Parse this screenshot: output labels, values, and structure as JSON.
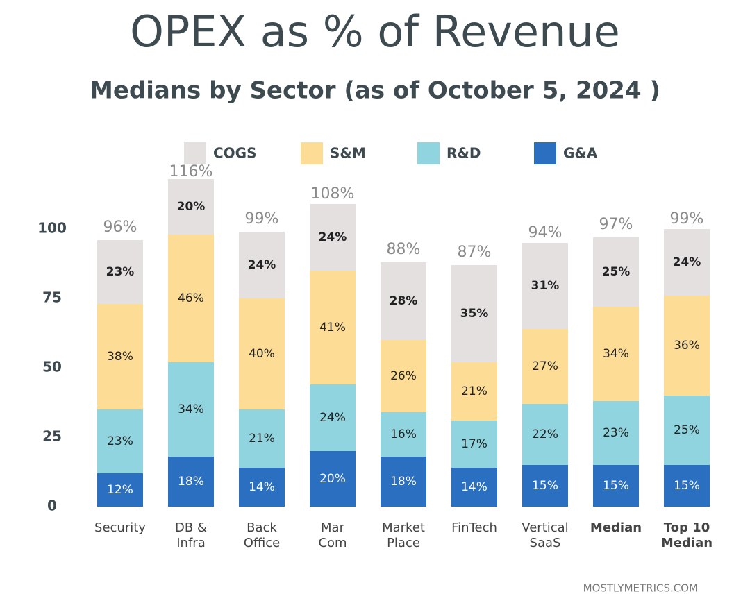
{
  "chart_data": {
    "type": "stacked_bar",
    "title": "OPEX as % of Revenue",
    "subtitle": "Medians by Sector (as of October 5, 2024 )",
    "source": "MOSTLYMETRICS.COM",
    "categories": [
      [
        "Security"
      ],
      [
        "DB &",
        "Infra"
      ],
      [
        "Back",
        "Office"
      ],
      [
        "Mar",
        "Com"
      ],
      [
        "Market",
        "Place"
      ],
      [
        "FinTech"
      ],
      [
        "Vertical",
        "SaaS"
      ],
      [
        "Median"
      ],
      [
        "Top 10",
        "Median"
      ]
    ],
    "series": [
      {
        "name": "COGS",
        "color": "#e4e0e0",
        "values": [
          23,
          20,
          24,
          24,
          28,
          35,
          31,
          25,
          24
        ],
        "value_labels": [
          "23%",
          "20%",
          "24%",
          "24%",
          "28%",
          "35%",
          "31%",
          "25%",
          "24%"
        ]
      },
      {
        "name": "S&M",
        "color": "#fddc95",
        "values": [
          38,
          46,
          40,
          41,
          26,
          21,
          27,
          34,
          36
        ],
        "value_labels": [
          "38%",
          "46%",
          "40%",
          "41%",
          "26%",
          "21%",
          "27%",
          "34%",
          "36%"
        ]
      },
      {
        "name": "R&D",
        "color": "#8fd4de",
        "values": [
          23,
          34,
          21,
          24,
          16,
          17,
          22,
          23,
          25
        ],
        "value_labels": [
          "23%",
          "34%",
          "21%",
          "24%",
          "16%",
          "17%",
          "22%",
          "23%",
          "25%"
        ]
      },
      {
        "name": "G&A",
        "color": "#2a6fc0",
        "values": [
          12,
          18,
          14,
          20,
          18,
          14,
          15,
          15,
          15
        ],
        "value_labels": [
          "12%",
          "18%",
          "14%",
          "20%",
          "18%",
          "14%",
          "15%",
          "15%",
          "15%"
        ]
      }
    ],
    "totals": [
      96,
      116,
      99,
      108,
      88,
      87,
      94,
      97,
      99
    ],
    "total_labels": [
      "96%",
      "116%",
      "99%",
      "108%",
      "88%",
      "87%",
      "94%",
      "97%",
      "99%"
    ],
    "ylim": [
      0,
      125
    ],
    "yticks": [
      0,
      25,
      50,
      75,
      100
    ],
    "grid": false
  }
}
